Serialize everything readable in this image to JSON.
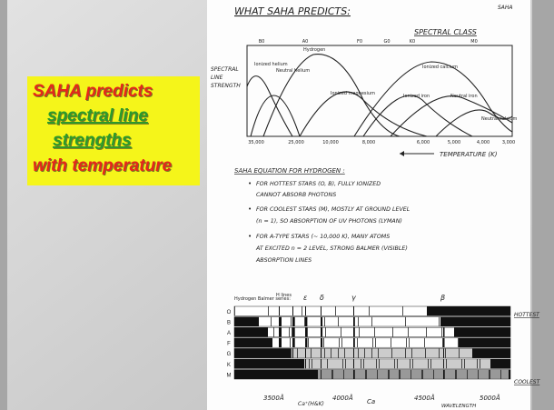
{
  "slide": {
    "callout": [
      "SAHA predicts",
      "spectral line",
      "strengths",
      "with temperature"
    ]
  },
  "notes": {
    "corner_label": "SAHA",
    "title": "WHAT SAHA PREDICTS:",
    "spectral_class_title": "SPECTRAL CLASS",
    "spectral_classes": [
      "B0",
      "A0",
      "F0",
      "G0",
      "K0",
      "M0"
    ],
    "y_label": [
      "SPECTRAL",
      "LINE",
      "STRENGTH"
    ],
    "curve_labels": [
      "Ionized helium",
      "Neutral helium",
      "Hydrogen",
      "Ionized magnesium",
      "Ionized calcium",
      "Ionized iron",
      "Neutral iron",
      "Neutral calcium"
    ],
    "temperatures": [
      "35,000",
      "25,000",
      "10,000",
      "8,000",
      "6,000",
      "5,000",
      "4,000",
      "3,000"
    ],
    "x_label": "TEMPERATURE (K)",
    "equation_title": "SAHA EQUATION FOR HYDROGEN :",
    "bullets": [
      [
        "FOR HOTTEST STARS (O, B), FULLY IONIZED",
        "CANNOT ABSORB PHOTONS"
      ],
      [
        "FOR COOLEST STARS (M), MOSTLY AT GROUND LEVEL",
        "(n = 1), SO ABSORPTION OF UV PHOTONS (LYMAN)"
      ],
      [
        "FOR A-TYPE STARS (~ 10,000 K), MANY ATOMS",
        "AT EXCITED n = 2 LEVEL, STRONG BALMER (VISIBLE)",
        "ABSORPTION LINES"
      ]
    ]
  },
  "spectra": {
    "series_label": "Hydrogen Balmer series:",
    "top_labels": [
      "H lines",
      "ε",
      "δ",
      "γ",
      "β"
    ],
    "rows": [
      "O",
      "B",
      "A",
      "F",
      "G",
      "K",
      "M"
    ],
    "hottest": "HOTTEST",
    "coolest": "COOLEST",
    "bottom_labels": [
      "3500Å",
      "Ca⁺(H&K)",
      "4000Å",
      "Ca",
      "4500Å",
      "WAVELENGTH",
      "5000Å"
    ]
  }
}
